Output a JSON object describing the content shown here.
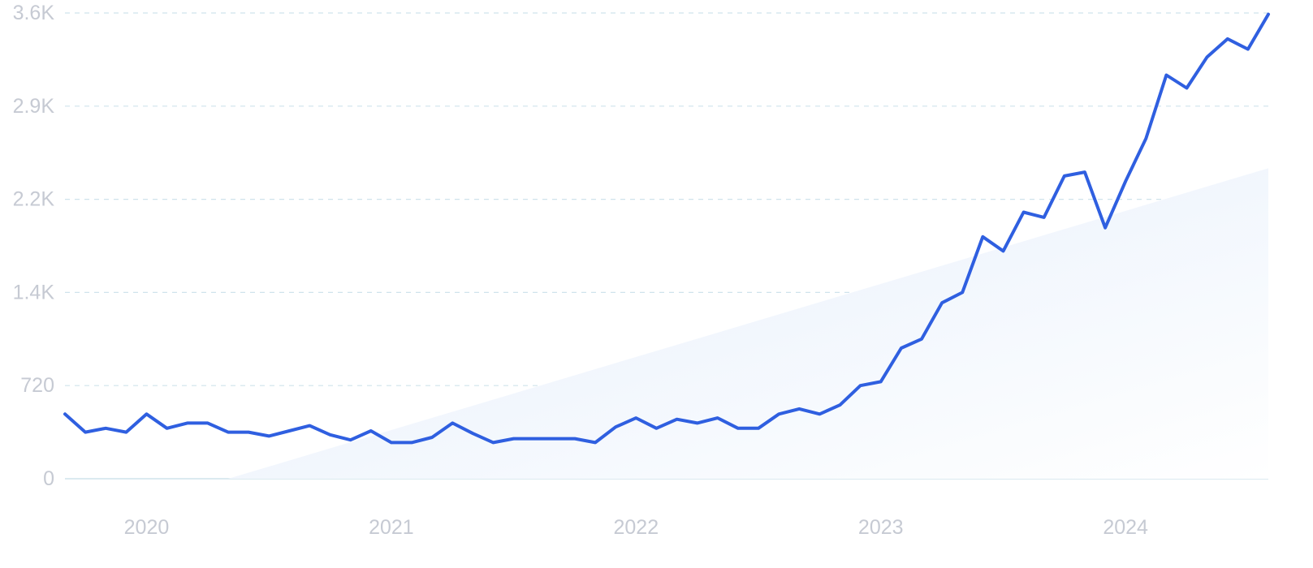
{
  "chart_data": {
    "type": "line",
    "title": "",
    "xlabel": "",
    "ylabel": "",
    "x_ticks": [
      "2020",
      "2021",
      "2022",
      "2023",
      "2024"
    ],
    "y_ticks": [
      "0",
      "720",
      "1.4K",
      "2.2K",
      "2.9K",
      "3.6K"
    ],
    "y_tick_values": [
      0,
      720,
      1440,
      2160,
      2880,
      3600
    ],
    "ylim": [
      0,
      3600
    ],
    "xlim": [
      "2019-09",
      "2024-08"
    ],
    "grid": true,
    "legend": "none",
    "colors": {
      "line": "#2f5fe0",
      "trend_fill_start": "#e4eefb",
      "trend_fill_end": "#ffffff",
      "grid": "#cfe3ec",
      "tick_text": "#c6cad3"
    },
    "trend": {
      "start": {
        "x": "2020-05",
        "y": 0
      },
      "end": {
        "x": "2024-08",
        "y": 2400
      }
    },
    "series": [
      {
        "x": [
          "2019-09",
          "2019-10",
          "2019-11",
          "2019-12",
          "2020-01",
          "2020-02",
          "2020-03",
          "2020-04",
          "2020-05",
          "2020-06",
          "2020-07",
          "2020-08",
          "2020-09",
          "2020-10",
          "2020-11",
          "2020-12",
          "2021-01",
          "2021-02",
          "2021-03",
          "2021-04",
          "2021-05",
          "2021-06",
          "2021-07",
          "2021-08",
          "2021-09",
          "2021-10",
          "2021-11",
          "2021-12",
          "2022-01",
          "2022-02",
          "2022-03",
          "2022-04",
          "2022-05",
          "2022-06",
          "2022-07",
          "2022-08",
          "2022-09",
          "2022-10",
          "2022-11",
          "2022-12",
          "2023-01",
          "2023-02",
          "2023-03",
          "2023-04",
          "2023-05",
          "2023-06",
          "2023-07",
          "2023-08",
          "2023-09",
          "2023-10",
          "2023-11",
          "2023-12",
          "2024-01",
          "2024-02",
          "2024-03",
          "2024-04",
          "2024-05",
          "2024-06",
          "2024-07",
          "2024-08"
        ],
        "values": [
          500,
          360,
          390,
          360,
          500,
          390,
          430,
          430,
          360,
          360,
          330,
          370,
          410,
          340,
          300,
          370,
          280,
          280,
          320,
          430,
          350,
          280,
          310,
          310,
          310,
          310,
          280,
          400,
          470,
          390,
          460,
          430,
          470,
          390,
          390,
          500,
          540,
          500,
          570,
          720,
          750,
          1010,
          1080,
          1360,
          1440,
          1870,
          1760,
          2060,
          2020,
          2340,
          2370,
          1940,
          2300,
          2630,
          3120,
          3020,
          3260,
          3400,
          3320,
          3590
        ]
      }
    ]
  }
}
